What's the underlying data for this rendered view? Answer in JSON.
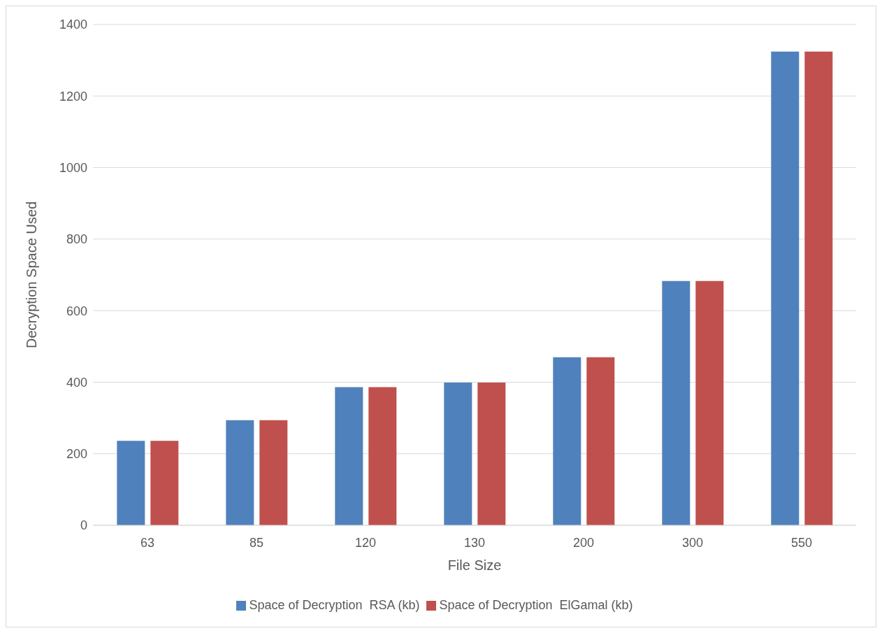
{
  "chart_data": {
    "type": "bar",
    "xlabel": "File Size",
    "ylabel": "Decryption Space Used",
    "categories": [
      "63",
      "85",
      "120",
      "130",
      "200",
      "300",
      "550"
    ],
    "series": [
      {
        "name": "Space of Decryption  RSA (kb)",
        "color": "#4f81bd",
        "values": [
          236,
          294,
          386,
          399,
          470,
          683,
          1324
        ]
      },
      {
        "name": "Space of Decryption  ElGamal (kb)",
        "color": "#c0504d",
        "values": [
          236,
          294,
          386,
          399,
          470,
          683,
          1324
        ]
      }
    ],
    "ylim": [
      0,
      1400
    ],
    "yticks": [
      0,
      200,
      400,
      600,
      800,
      1000,
      1200,
      1400
    ],
    "grid": "y",
    "legend": "bottom"
  }
}
